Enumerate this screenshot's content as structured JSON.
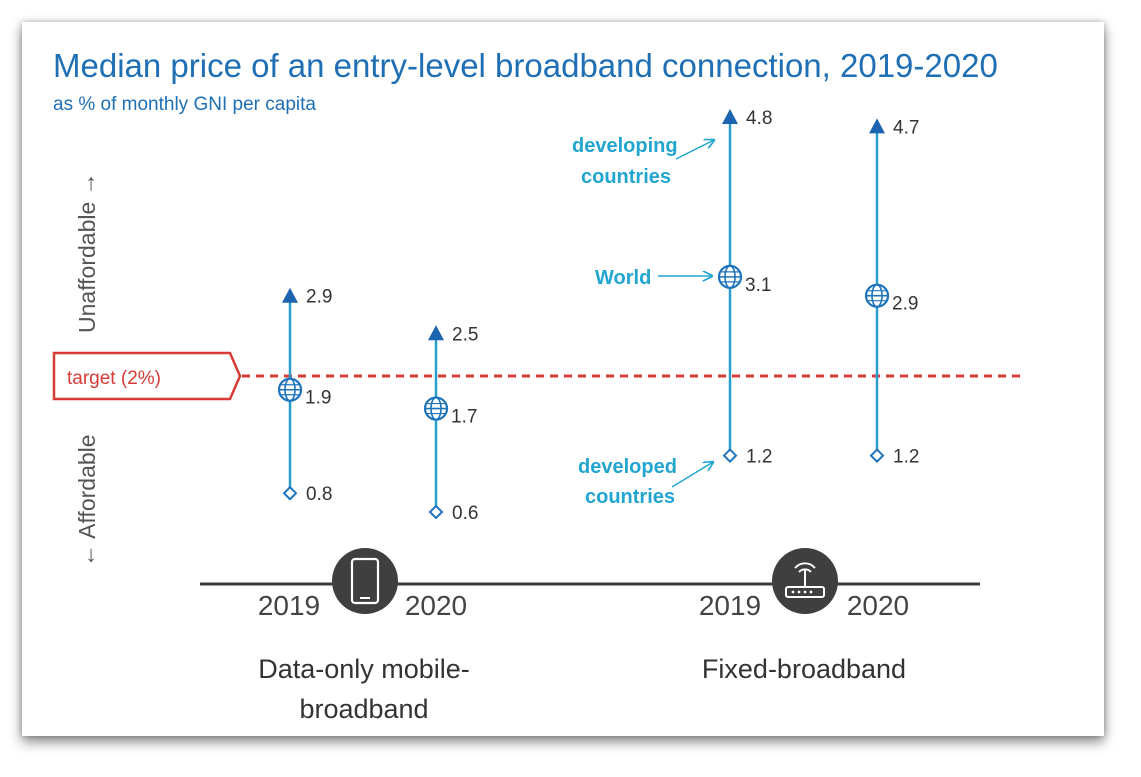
{
  "chart_data": {
    "type": "range",
    "title": "Median price of an entry-level broadband connection, 2019-2020",
    "subtitle": "as % of monthly GNI per capita",
    "y_axis": {
      "upper_label": "Unaffordable →",
      "lower_label": "← Affordable"
    },
    "target": {
      "label": "target (2%)",
      "value": 2
    },
    "groups": [
      {
        "id": "mobile",
        "name_lines": [
          "Data-only mobile-",
          "broadband"
        ],
        "icon": "mobile-phone-icon",
        "points": [
          {
            "year": "2019",
            "developing": 2.9,
            "world": 1.9,
            "developed": 0.8,
            "labels": {
              "developing": "2.9",
              "world": "1.9",
              "developed": "0.8"
            }
          },
          {
            "year": "2020",
            "developing": 2.5,
            "world": 1.7,
            "developed": 0.6,
            "labels": {
              "developing": "2.5",
              "world": "1.7",
              "developed": "0.6"
            }
          }
        ]
      },
      {
        "id": "fixed",
        "name_lines": [
          "Fixed-broadband"
        ],
        "icon": "wifi-router-icon",
        "points": [
          {
            "year": "2019",
            "developing": 4.8,
            "world": 3.1,
            "developed": 1.2,
            "labels": {
              "developing": "4.8",
              "world": "3.1",
              "developed": "1.2"
            }
          },
          {
            "year": "2020",
            "developing": 4.7,
            "world": 2.9,
            "developed": 1.2,
            "labels": {
              "developing": "4.7",
              "world": "2.9",
              "developed": "1.2"
            }
          }
        ]
      }
    ],
    "annotations": {
      "developing": [
        "developing",
        "countries"
      ],
      "world": "World",
      "developed": [
        "developed",
        "countries"
      ]
    },
    "colors": {
      "title": "#1f6fb5",
      "range_line": "#2a9ec9",
      "developing_marker": "#1c64b0",
      "world_marker": "#1f74bb",
      "developed_marker": "#1f74bb",
      "annotation": "#22a5cf",
      "target": "#d63b36"
    }
  }
}
